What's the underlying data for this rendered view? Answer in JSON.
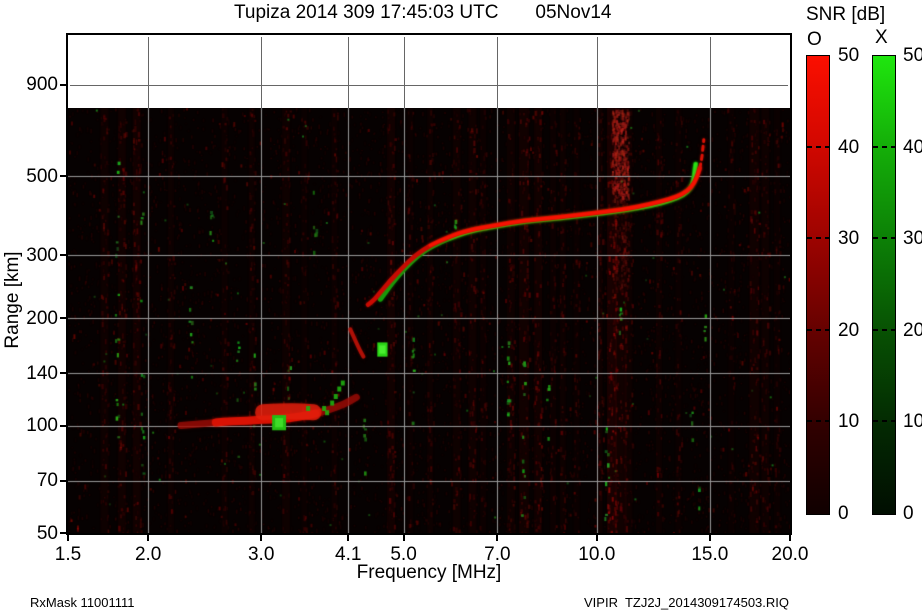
{
  "header": {
    "title": "Tupiza 2014 309 17:45:03 UTC",
    "date": "05Nov14"
  },
  "legend": {
    "title": "SNR [dB]",
    "bars": [
      {
        "label": "O",
        "color_top": "#fb0f00",
        "ticks": [
          "50",
          "40",
          "30",
          "20",
          "10",
          "0"
        ]
      },
      {
        "label": "X",
        "color_top": "#1fe60e",
        "ticks": [
          "50",
          "40",
          "30",
          "20",
          "10",
          "0"
        ]
      }
    ]
  },
  "footer": {
    "left": "RxMask 11001111",
    "right": "VIPIR  TZJ2J_2014309174503.RIQ"
  },
  "colors": {
    "background": "#060101",
    "gridline": "#999999",
    "o_trace": "#f71302",
    "o_trace_dim": "#c80a02",
    "x_trace": "#2ae416",
    "x_trace_dim": "#15a00c",
    "es_layer": "#d81204",
    "noise_red": "#5a0703",
    "noise_green": "#2a9a22"
  },
  "chart_data": {
    "type": "heatmap",
    "description": "VIPIR ionogram: O-mode (red) and X-mode (green) echo SNR vs frequency and virtual range",
    "title": "Tupiza 2014 309 17:45:03 UTC",
    "date": "05Nov14",
    "xlabel": "Frequency [MHz]",
    "ylabel": "Range [km]",
    "x_scale": "log",
    "y_scale": "log",
    "xlim": [
      1.5,
      20.0
    ],
    "ylim_km": [
      50,
      1240
    ],
    "data_max_range_km": 775,
    "snr_scale_db": [
      0,
      50
    ],
    "x_ticks": [
      1.5,
      2.0,
      3.0,
      4.1,
      5.0,
      7.0,
      10.0,
      15.0,
      20.0
    ],
    "x_tick_labels": [
      "1.5",
      "2.0",
      "3.0",
      "4.1",
      "5.0",
      "7.0",
      "10.0",
      "15.0",
      "20.0"
    ],
    "y_ticks": [
      900,
      500,
      300,
      200,
      140,
      100,
      70,
      50
    ],
    "grid_x": [
      2.0,
      3.0,
      4.1,
      5.0,
      7.0,
      10.0,
      15.0
    ],
    "grid_y": [
      900,
      500,
      300,
      200,
      140,
      100,
      70
    ],
    "o_trace_mhz_km": [
      [
        4.4,
        218
      ],
      [
        4.49,
        224
      ],
      [
        4.56,
        232
      ],
      [
        4.76,
        254
      ],
      [
        4.97,
        276
      ],
      [
        5.21,
        300
      ],
      [
        5.5,
        320
      ],
      [
        5.86,
        337
      ],
      [
        6.3,
        353
      ],
      [
        6.94,
        364
      ],
      [
        7.73,
        376
      ],
      [
        8.76,
        384
      ],
      [
        9.93,
        394
      ],
      [
        11.06,
        404
      ],
      [
        12.09,
        417
      ],
      [
        12.99,
        431
      ],
      [
        13.61,
        445
      ],
      [
        14.06,
        466
      ],
      [
        14.31,
        494
      ],
      [
        14.47,
        526
      ],
      [
        14.58,
        561
      ],
      [
        14.63,
        599
      ],
      [
        14.68,
        632
      ]
    ],
    "o_trace_dashed_from_km": 526,
    "x_trace_mhz_km": [
      [
        4.6,
        226
      ],
      [
        4.7,
        238
      ],
      [
        4.79,
        250
      ],
      [
        5.02,
        276
      ],
      [
        5.27,
        300
      ],
      [
        5.53,
        318
      ],
      [
        5.89,
        335
      ],
      [
        6.33,
        351
      ],
      [
        6.97,
        362
      ],
      [
        7.76,
        374
      ],
      [
        8.8,
        382
      ],
      [
        10.0,
        392
      ],
      [
        11.14,
        402
      ],
      [
        12.19,
        414
      ],
      [
        13.07,
        428
      ],
      [
        13.66,
        443
      ],
      [
        14.01,
        463
      ],
      [
        14.16,
        487
      ],
      [
        14.21,
        513
      ],
      [
        14.26,
        540
      ]
    ],
    "es_layer": {
      "points_mhz_km": [
        [
          2.25,
          100
        ],
        [
          2.4,
          101
        ],
        [
          2.55,
          102
        ],
        [
          2.7,
          103
        ],
        [
          2.85,
          103
        ],
        [
          3.0,
          104
        ],
        [
          3.2,
          104
        ],
        [
          3.45,
          106
        ],
        [
          3.64,
          108
        ],
        [
          3.84,
          111
        ],
        [
          4.05,
          115
        ],
        [
          4.22,
          120
        ]
      ],
      "bright_mhz": [
        2.5,
        3.65
      ],
      "thick_mhz": [
        3.02,
        3.62
      ],
      "thick_center_km": 109
    },
    "cusp_arc_mhz_km": [
      [
        4.13,
        186
      ],
      [
        4.2,
        174
      ],
      [
        4.27,
        163
      ],
      [
        4.33,
        156
      ]
    ],
    "green_blob": {
      "f_mhz": [
        4.55,
        4.72
      ],
      "range_km": [
        156,
        171
      ]
    },
    "es_green_blob": {
      "f_mhz": [
        3.12,
        3.28
      ],
      "range_km": [
        97,
        107
      ]
    },
    "green_dashes_mhz_km": [
      [
        3.55,
        112
      ],
      [
        3.76,
        112
      ],
      [
        3.8,
        109
      ],
      [
        3.87,
        116
      ],
      [
        3.92,
        121
      ],
      [
        3.97,
        127
      ],
      [
        4.02,
        132
      ]
    ],
    "rfi_stripes": [
      {
        "f": 1.71,
        "a": 0.22,
        "w": 4
      },
      {
        "f": 1.82,
        "a": 0.28,
        "w": 4
      },
      {
        "f": 1.92,
        "a": 0.3,
        "w": 4
      },
      {
        "f": 2.17,
        "a": 0.2,
        "w": 3
      },
      {
        "f": 2.63,
        "a": 0.18,
        "w": 3
      },
      {
        "f": 2.9,
        "a": 0.2,
        "w": 3
      },
      {
        "f": 3.28,
        "a": 0.22,
        "w": 4
      },
      {
        "f": 3.5,
        "a": 0.15,
        "w": 3
      },
      {
        "f": 3.9,
        "a": 0.18,
        "w": 3
      },
      {
        "f": 4.78,
        "a": 0.3,
        "w": 4
      },
      {
        "f": 5.12,
        "a": 0.16,
        "w": 3
      },
      {
        "f": 5.5,
        "a": 0.2,
        "w": 3
      },
      {
        "f": 6.05,
        "a": 0.22,
        "w": 4
      },
      {
        "f": 6.4,
        "a": 0.25,
        "w": 4
      },
      {
        "f": 6.65,
        "a": 0.18,
        "w": 3
      },
      {
        "f": 7.35,
        "a": 0.22,
        "w": 4
      },
      {
        "f": 7.7,
        "a": 0.3,
        "w": 5
      },
      {
        "f": 8.1,
        "a": 0.3,
        "w": 4
      },
      {
        "f": 8.55,
        "a": 0.18,
        "w": 3
      },
      {
        "f": 8.85,
        "a": 0.2,
        "w": 3
      },
      {
        "f": 9.3,
        "a": 0.16,
        "w": 3
      },
      {
        "f": 10.1,
        "a": 0.22,
        "w": 3
      },
      {
        "f": 10.56,
        "a": 0.5,
        "w": 5
      },
      {
        "f": 10.9,
        "a": 0.3,
        "w": 6
      },
      {
        "f": 11.2,
        "a": 0.2,
        "w": 4
      },
      {
        "f": 12.5,
        "a": 0.2,
        "w": 3
      },
      {
        "f": 13.4,
        "a": 0.16,
        "w": 3
      },
      {
        "f": 16.2,
        "a": 0.12,
        "w": 3
      },
      {
        "f": 17.6,
        "a": 0.28,
        "w": 5
      },
      {
        "f": 18.3,
        "a": 0.22,
        "w": 4
      },
      {
        "f": 19.1,
        "a": 0.15,
        "w": 3
      }
    ],
    "red_patch": {
      "f_mhz": [
        10.55,
        11.2
      ],
      "range_km": [
        430,
        770
      ],
      "alpha": 0.45
    },
    "green_columns": [
      {
        "f": 1.78,
        "r": [
          60,
          640
        ],
        "n": 16
      },
      {
        "f": 1.95,
        "r": [
          70,
          620
        ],
        "n": 12
      },
      {
        "f": 2.32,
        "r": [
          90,
          260
        ],
        "n": 7
      },
      {
        "f": 2.5,
        "r": [
          330,
          430
        ],
        "n": 5
      },
      {
        "f": 2.75,
        "r": [
          70,
          200
        ],
        "n": 7
      },
      {
        "f": 2.92,
        "r": [
          95,
          170
        ],
        "n": 5
      },
      {
        "f": 3.3,
        "r": [
          100,
          150
        ],
        "n": 5
      },
      {
        "f": 3.62,
        "r": [
          300,
          480
        ],
        "n": 6
      },
      {
        "f": 4.32,
        "r": [
          60,
          105
        ],
        "n": 6
      },
      {
        "f": 5.15,
        "r": [
          100,
          200
        ],
        "n": 7
      },
      {
        "f": 6.0,
        "r": [
          330,
          400
        ],
        "n": 4
      },
      {
        "f": 7.25,
        "r": [
          100,
          175
        ],
        "n": 9
      },
      {
        "f": 7.65,
        "r": [
          55,
          160
        ],
        "n": 12
      },
      {
        "f": 8.35,
        "r": [
          90,
          130
        ],
        "n": 5
      },
      {
        "f": 10.3,
        "r": [
          55,
          140
        ],
        "n": 8
      },
      {
        "f": 10.85,
        "r": [
          150,
          230
        ],
        "n": 5
      },
      {
        "f": 13.95,
        "r": [
          90,
          125
        ],
        "n": 4
      },
      {
        "f": 14.3,
        "r": [
          55,
          70
        ],
        "n": 3
      },
      {
        "f": 14.65,
        "r": [
          170,
          225
        ],
        "n": 4
      }
    ],
    "noise": {
      "seed": 1337,
      "red_count": 5200,
      "red_bright_count": 260,
      "green_count": 80
    }
  }
}
